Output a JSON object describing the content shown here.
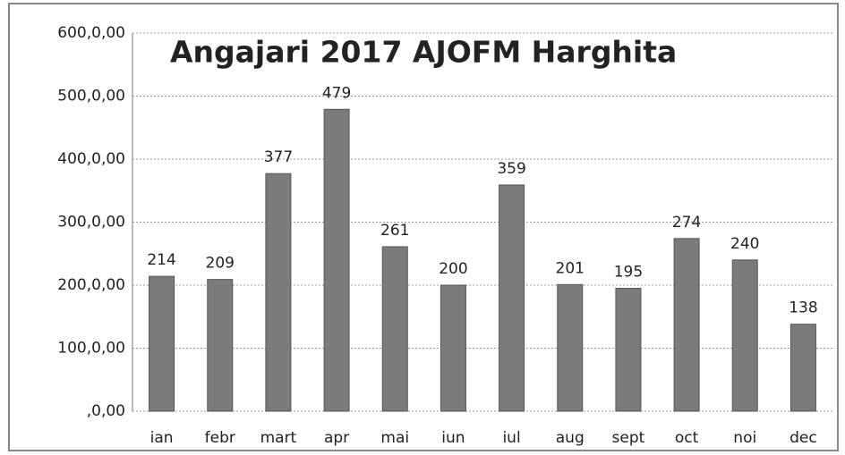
{
  "chart_data": {
    "type": "bar",
    "title": "Angajari 2017 AJOFM Harghita",
    "categories": [
      "ian",
      "febr",
      "mart",
      "apr",
      "mai",
      "iun",
      "iul",
      "aug",
      "sept",
      "oct",
      "noi",
      "dec"
    ],
    "values": [
      214,
      209,
      377,
      479,
      261,
      200,
      359,
      201,
      195,
      274,
      240,
      138
    ],
    "color": "#7b7b7b",
    "ylim": [
      0,
      600
    ],
    "yticks": [
      {
        "value": 0,
        "label": ",0,00"
      },
      {
        "value": 100,
        "label": "100,0,00"
      },
      {
        "value": 200,
        "label": "200,0,00"
      },
      {
        "value": 300,
        "label": "300,0,00"
      },
      {
        "value": 400,
        "label": "400,0,00"
      },
      {
        "value": 500,
        "label": "500,0,00"
      },
      {
        "value": 600,
        "label": "600,0,00"
      }
    ],
    "grid": true
  }
}
